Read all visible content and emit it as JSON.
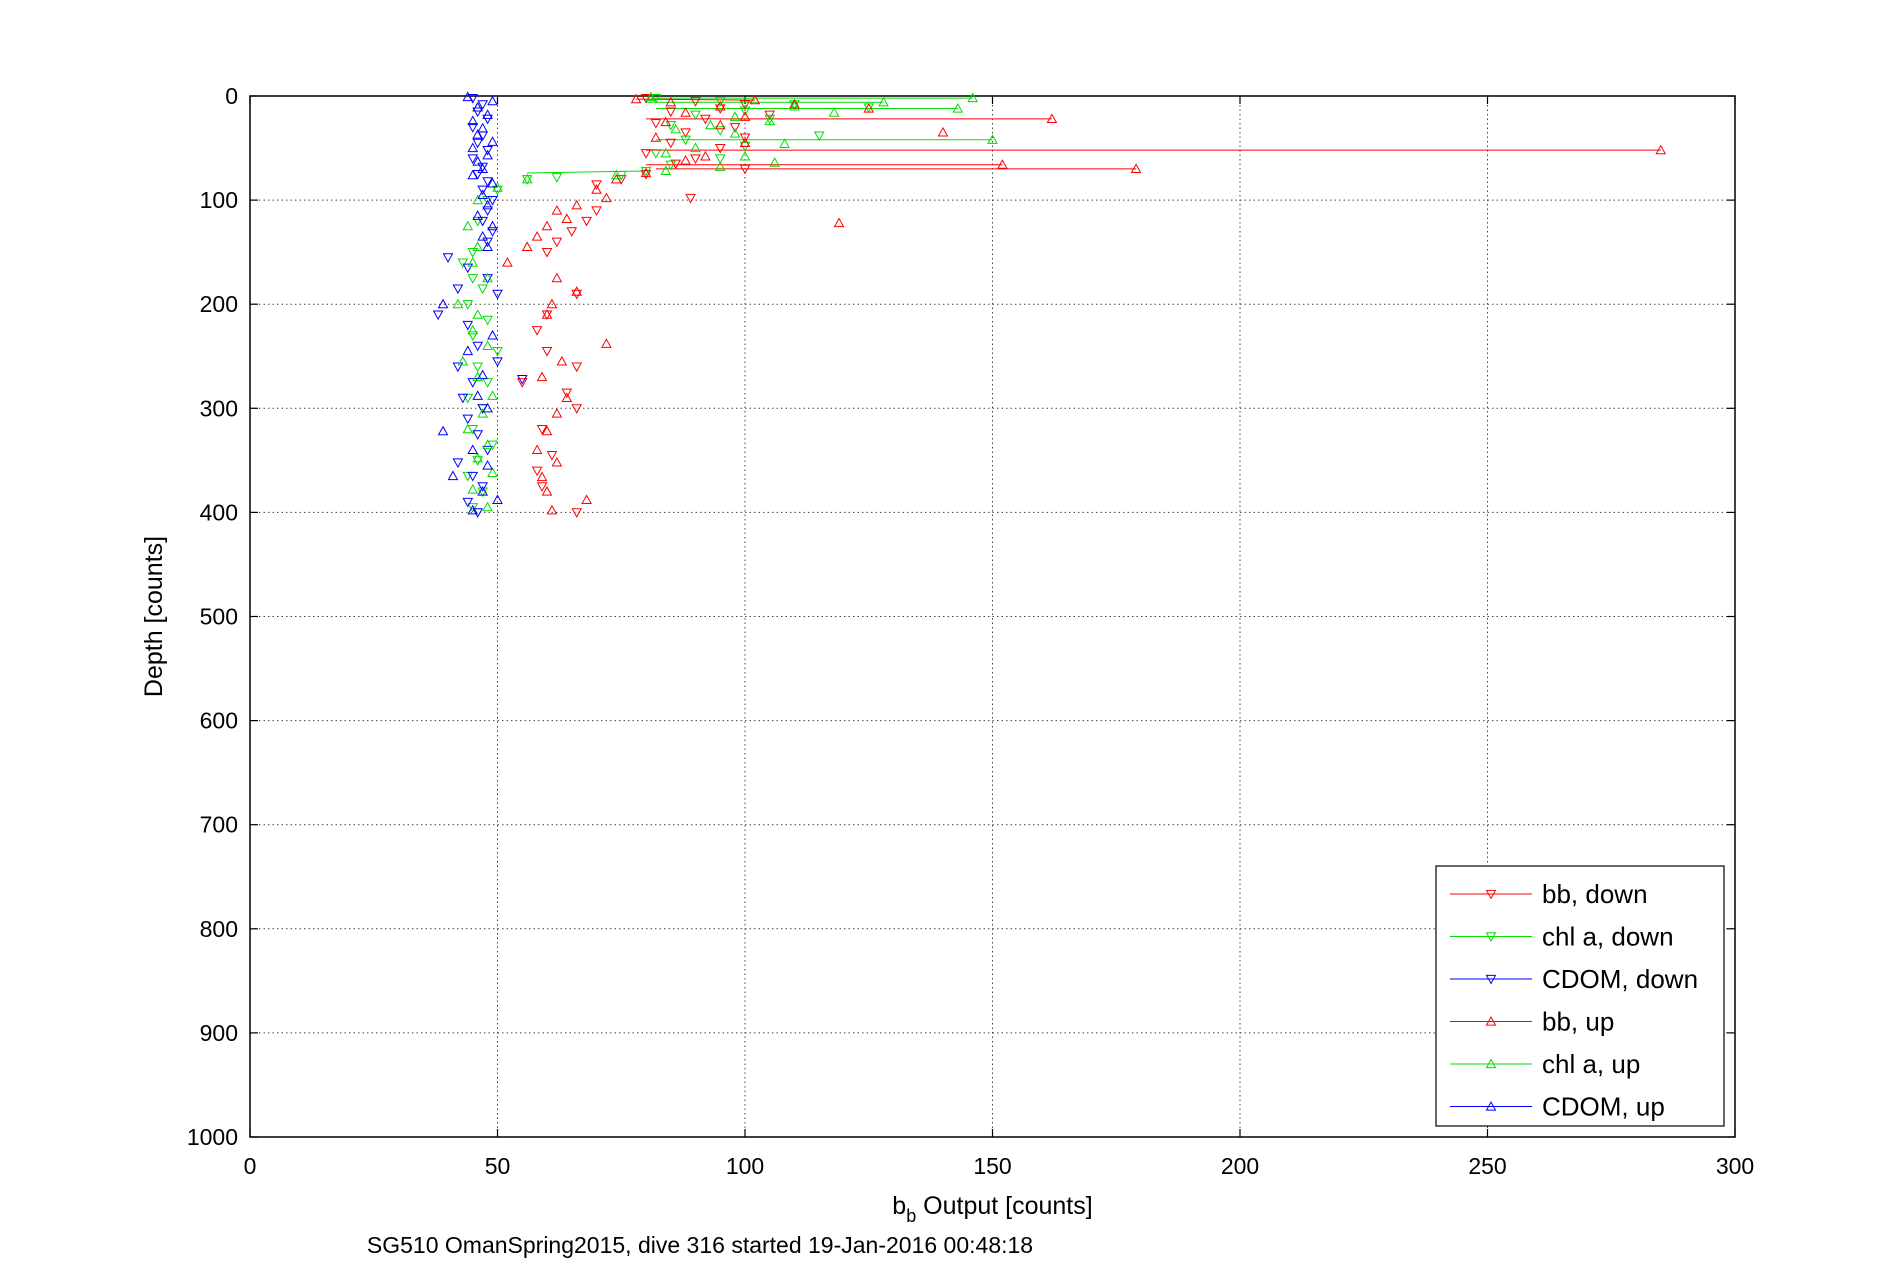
{
  "chart_data": {
    "type": "scatter",
    "xlabel_main": "b",
    "xlabel_sub": "b",
    "xlabel_rest": " Output [counts]",
    "ylabel": "Depth [counts]",
    "caption": "SG510 OmanSpring2015, dive 316 started 19-Jan-2016 00:48:18",
    "xlim": [
      0,
      300
    ],
    "ylim": [
      0,
      1000
    ],
    "y_reversed": true,
    "grid": true,
    "legend_position": "bottom-right",
    "xticks": [
      "0",
      "50",
      "100",
      "150",
      "200",
      "250",
      "300"
    ],
    "yticks": [
      "0",
      "100",
      "200",
      "300",
      "400",
      "500",
      "600",
      "700",
      "800",
      "900",
      "1000"
    ],
    "series": [
      {
        "name": "bb, down",
        "color": "#ff0000",
        "marker": "triangle-down",
        "points": [
          [
            80,
            2
          ],
          [
            90,
            5
          ],
          [
            100,
            8
          ],
          [
            95,
            12
          ],
          [
            85,
            15
          ],
          [
            105,
            18
          ],
          [
            92,
            22
          ],
          [
            82,
            26
          ],
          [
            98,
            30
          ],
          [
            88,
            35
          ],
          [
            100,
            40
          ],
          [
            85,
            45
          ],
          [
            95,
            50
          ],
          [
            80,
            55
          ],
          [
            90,
            60
          ],
          [
            86,
            65
          ],
          [
            100,
            70
          ],
          [
            80,
            75
          ],
          [
            75,
            80
          ],
          [
            70,
            85
          ],
          [
            89,
            98
          ],
          [
            70,
            110
          ],
          [
            68,
            120
          ],
          [
            65,
            130
          ],
          [
            62,
            140
          ],
          [
            60,
            150
          ],
          [
            66,
            190
          ],
          [
            60,
            210
          ],
          [
            58,
            225
          ],
          [
            60,
            245
          ],
          [
            66,
            260
          ],
          [
            55,
            275
          ],
          [
            64,
            285
          ],
          [
            66,
            300
          ],
          [
            59,
            320
          ],
          [
            61,
            345
          ],
          [
            58,
            360
          ],
          [
            59,
            375
          ],
          [
            66,
            400
          ]
        ]
      },
      {
        "name": "chl a, down",
        "color": "#00dd00",
        "marker": "triangle-down",
        "points": [
          [
            82,
            2
          ],
          [
            95,
            5
          ],
          [
            110,
            8
          ],
          [
            125,
            11
          ],
          [
            100,
            14
          ],
          [
            90,
            18
          ],
          [
            105,
            22
          ],
          [
            85,
            28
          ],
          [
            95,
            33
          ],
          [
            115,
            38
          ],
          [
            88,
            42
          ],
          [
            100,
            48
          ],
          [
            82,
            55
          ],
          [
            95,
            60
          ],
          [
            85,
            66
          ],
          [
            80,
            72
          ],
          [
            75,
            76
          ],
          [
            62,
            78
          ],
          [
            56,
            80
          ],
          [
            50,
            90
          ],
          [
            48,
            100
          ],
          [
            46,
            120
          ],
          [
            45,
            150
          ],
          [
            43,
            160
          ],
          [
            45,
            175
          ],
          [
            47,
            185
          ],
          [
            44,
            200
          ],
          [
            48,
            215
          ],
          [
            45,
            230
          ],
          [
            50,
            245
          ],
          [
            46,
            260
          ],
          [
            48,
            275
          ],
          [
            44,
            290
          ],
          [
            47,
            300
          ],
          [
            45,
            320
          ],
          [
            49,
            335
          ],
          [
            46,
            350
          ],
          [
            44,
            365
          ],
          [
            47,
            380
          ],
          [
            45,
            395
          ]
        ]
      },
      {
        "name": "CDOM, down",
        "color": "#0000ff",
        "marker": "triangle-down",
        "points": [
          [
            45,
            2
          ],
          [
            47,
            8
          ],
          [
            46,
            15
          ],
          [
            48,
            22
          ],
          [
            45,
            30
          ],
          [
            47,
            38
          ],
          [
            46,
            45
          ],
          [
            48,
            52
          ],
          [
            45,
            60
          ],
          [
            47,
            68
          ],
          [
            46,
            75
          ],
          [
            48,
            82
          ],
          [
            47,
            90
          ],
          [
            49,
            100
          ],
          [
            48,
            110
          ],
          [
            47,
            120
          ],
          [
            49,
            130
          ],
          [
            48,
            140
          ],
          [
            40,
            155
          ],
          [
            44,
            165
          ],
          [
            48,
            175
          ],
          [
            42,
            185
          ],
          [
            50,
            190
          ],
          [
            38,
            210
          ],
          [
            44,
            220
          ],
          [
            46,
            240
          ],
          [
            50,
            255
          ],
          [
            42,
            260
          ],
          [
            45,
            275
          ],
          [
            55,
            272
          ],
          [
            43,
            290
          ],
          [
            47,
            300
          ],
          [
            44,
            310
          ],
          [
            46,
            325
          ],
          [
            48,
            340
          ],
          [
            42,
            352
          ],
          [
            45,
            365
          ],
          [
            47,
            375
          ],
          [
            44,
            390
          ],
          [
            46,
            400
          ]
        ]
      },
      {
        "name": "bb, up",
        "color": "#ff0000",
        "marker": "triangle-up",
        "points": [
          [
            78,
            3
          ],
          [
            85,
            6
          ],
          [
            102,
            4
          ],
          [
            110,
            8
          ],
          [
            95,
            10
          ],
          [
            125,
            12
          ],
          [
            88,
            16
          ],
          [
            100,
            20
          ],
          [
            162,
            22
          ],
          [
            84,
            25
          ],
          [
            95,
            28
          ],
          [
            140,
            35
          ],
          [
            82,
            40
          ],
          [
            100,
            45
          ],
          [
            285,
            52
          ],
          [
            92,
            58
          ],
          [
            88,
            62
          ],
          [
            152,
            66
          ],
          [
            179,
            70
          ],
          [
            80,
            74
          ],
          [
            74,
            80
          ],
          [
            70,
            90
          ],
          [
            72,
            98
          ],
          [
            66,
            105
          ],
          [
            62,
            110
          ],
          [
            64,
            118
          ],
          [
            60,
            125
          ],
          [
            58,
            135
          ],
          [
            56,
            145
          ],
          [
            119,
            122
          ],
          [
            52,
            160
          ],
          [
            62,
            175
          ],
          [
            61,
            200
          ],
          [
            60,
            210
          ],
          [
            66,
            188
          ],
          [
            72,
            238
          ],
          [
            63,
            255
          ],
          [
            59,
            270
          ],
          [
            64,
            290
          ],
          [
            62,
            305
          ],
          [
            60,
            322
          ],
          [
            58,
            340
          ],
          [
            62,
            352
          ],
          [
            59,
            366
          ],
          [
            60,
            380
          ],
          [
            68,
            388
          ],
          [
            61,
            398
          ]
        ]
      },
      {
        "name": "chl a, up",
        "color": "#00dd00",
        "marker": "triangle-up",
        "points": [
          [
            81,
            1
          ],
          [
            146,
            2
          ],
          [
            128,
            6
          ],
          [
            110,
            10
          ],
          [
            143,
            12
          ],
          [
            118,
            16
          ],
          [
            98,
            20
          ],
          [
            105,
            24
          ],
          [
            93,
            28
          ],
          [
            86,
            32
          ],
          [
            98,
            36
          ],
          [
            150,
            42
          ],
          [
            108,
            46
          ],
          [
            90,
            50
          ],
          [
            84,
            55
          ],
          [
            100,
            58
          ],
          [
            106,
            64
          ],
          [
            95,
            68
          ],
          [
            84,
            72
          ],
          [
            74,
            76
          ],
          [
            56,
            80
          ],
          [
            50,
            88
          ],
          [
            46,
            100
          ],
          [
            44,
            125
          ],
          [
            46,
            145
          ],
          [
            45,
            160
          ],
          [
            48,
            175
          ],
          [
            42,
            200
          ],
          [
            46,
            210
          ],
          [
            45,
            225
          ],
          [
            48,
            240
          ],
          [
            43,
            255
          ],
          [
            46,
            270
          ],
          [
            49,
            288
          ],
          [
            47,
            305
          ],
          [
            44,
            320
          ],
          [
            48,
            335
          ],
          [
            46,
            348
          ],
          [
            49,
            362
          ],
          [
            45,
            378
          ],
          [
            48,
            395
          ]
        ]
      },
      {
        "name": "CDOM, up",
        "color": "#0000ff",
        "marker": "triangle-up",
        "points": [
          [
            44,
            1
          ],
          [
            49,
            5
          ],
          [
            46,
            11
          ],
          [
            48,
            18
          ],
          [
            45,
            24
          ],
          [
            47,
            31
          ],
          [
            46,
            37
          ],
          [
            49,
            44
          ],
          [
            45,
            50
          ],
          [
            48,
            57
          ],
          [
            46,
            63
          ],
          [
            47,
            70
          ],
          [
            45,
            76
          ],
          [
            49,
            84
          ],
          [
            47,
            95
          ],
          [
            48,
            105
          ],
          [
            46,
            115
          ],
          [
            49,
            125
          ],
          [
            47,
            135
          ],
          [
            48,
            145
          ],
          [
            39,
            200
          ],
          [
            49,
            230
          ],
          [
            44,
            245
          ],
          [
            47,
            268
          ],
          [
            46,
            288
          ],
          [
            48,
            300
          ],
          [
            39,
            322
          ],
          [
            45,
            340
          ],
          [
            48,
            355
          ],
          [
            41,
            365
          ],
          [
            47,
            380
          ],
          [
            50,
            388
          ],
          [
            45,
            398
          ]
        ]
      }
    ],
    "connected_segments": [
      {
        "series": "bb, up",
        "from": [
          78,
          3
        ],
        "to": [
          102,
          4
        ]
      },
      {
        "series": "bb, up",
        "from": [
          80,
          52
        ],
        "to": [
          285,
          52
        ]
      },
      {
        "series": "bb, up",
        "from": [
          80,
          66
        ],
        "to": [
          152,
          66
        ]
      },
      {
        "series": "bb, up",
        "from": [
          82,
          70
        ],
        "to": [
          179,
          70
        ]
      },
      {
        "series": "bb, up",
        "from": [
          80,
          22
        ],
        "to": [
          162,
          22
        ]
      },
      {
        "series": "chl a, up",
        "from": [
          81,
          2
        ],
        "to": [
          146,
          2
        ]
      },
      {
        "series": "chl a, up",
        "from": [
          82,
          12
        ],
        "to": [
          143,
          12
        ]
      },
      {
        "series": "chl a, up",
        "from": [
          82,
          42
        ],
        "to": [
          150,
          42
        ]
      },
      {
        "series": "chl a, up",
        "from": [
          80,
          6
        ],
        "to": [
          128,
          6
        ]
      },
      {
        "series": "chl a, up",
        "from": [
          56,
          74
        ],
        "to": [
          80,
          72
        ]
      }
    ]
  }
}
